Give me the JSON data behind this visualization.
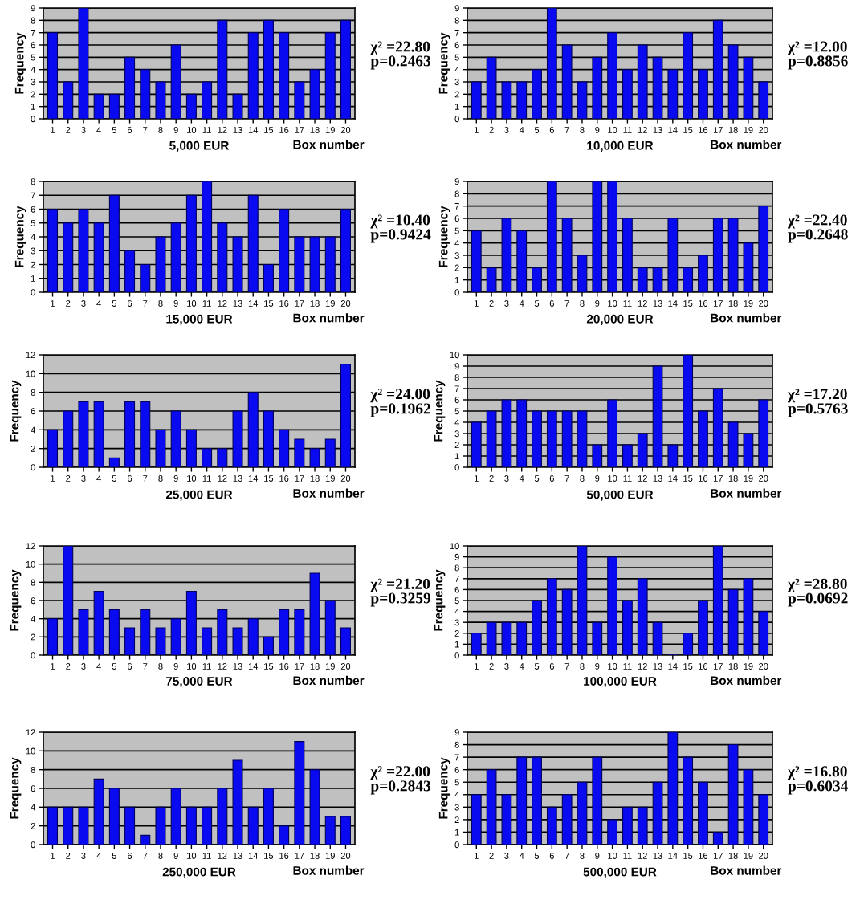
{
  "chart_data": [
    {
      "type": "bar",
      "title": "5,000 EUR",
      "xlabel": "Box number",
      "ylabel": "Frequency",
      "categories": [
        "1",
        "2",
        "3",
        "4",
        "5",
        "6",
        "7",
        "8",
        "9",
        "10",
        "11",
        "12",
        "13",
        "14",
        "15",
        "16",
        "17",
        "18",
        "19",
        "20"
      ],
      "series": [
        {
          "color": "#0a0af0",
          "values": [
            7,
            3,
            9,
            2,
            2,
            5,
            4,
            3,
            6,
            2,
            3,
            8,
            2,
            7,
            8,
            7,
            3,
            4,
            7,
            8
          ]
        }
      ],
      "ylim": [
        0,
        9
      ],
      "yticks": [
        0,
        1,
        2,
        3,
        4,
        5,
        6,
        7,
        8,
        9
      ],
      "grid": "y",
      "annotations": [
        "χ² =22.80",
        "p=0.2463"
      ]
    },
    {
      "type": "bar",
      "title": "10,000 EUR",
      "xlabel": "Box number",
      "ylabel": "Frequency",
      "categories": [
        "1",
        "2",
        "3",
        "4",
        "5",
        "6",
        "7",
        "8",
        "9",
        "10",
        "11",
        "12",
        "13",
        "14",
        "15",
        "16",
        "17",
        "18",
        "19",
        "20"
      ],
      "series": [
        {
          "color": "#0a0af0",
          "values": [
            3,
            5,
            3,
            3,
            4,
            9,
            6,
            3,
            5,
            7,
            4,
            6,
            5,
            4,
            7,
            4,
            8,
            6,
            5,
            3
          ]
        }
      ],
      "ylim": [
        0,
        9
      ],
      "yticks": [
        0,
        1,
        2,
        3,
        4,
        5,
        6,
        7,
        8,
        9
      ],
      "grid": "y",
      "annotations": [
        "χ² =12.00",
        "p=0.8856"
      ]
    },
    {
      "type": "bar",
      "title": "15,000 EUR",
      "xlabel": "Box number",
      "ylabel": "Frequency",
      "categories": [
        "1",
        "2",
        "3",
        "4",
        "5",
        "6",
        "7",
        "8",
        "9",
        "10",
        "11",
        "12",
        "13",
        "14",
        "15",
        "16",
        "17",
        "18",
        "19",
        "20"
      ],
      "series": [
        {
          "color": "#0a0af0",
          "values": [
            6,
            5,
            6,
            5,
            7,
            3,
            2,
            4,
            5,
            7,
            8,
            5,
            4,
            7,
            2,
            6,
            4,
            4,
            4,
            6
          ]
        }
      ],
      "ylim": [
        0,
        8
      ],
      "yticks": [
        0,
        1,
        2,
        3,
        4,
        5,
        6,
        7,
        8
      ],
      "grid": "y",
      "annotations": [
        "χ² =10.40",
        "p=0.9424"
      ]
    },
    {
      "type": "bar",
      "title": "20,000 EUR",
      "xlabel": "Box number",
      "ylabel": "Frequency",
      "categories": [
        "1",
        "2",
        "3",
        "4",
        "5",
        "6",
        "7",
        "8",
        "9",
        "10",
        "11",
        "12",
        "13",
        "14",
        "15",
        "16",
        "17",
        "18",
        "19",
        "20"
      ],
      "series": [
        {
          "color": "#0a0af0",
          "values": [
            5,
            2,
            6,
            5,
            2,
            9,
            6,
            3,
            9,
            9,
            6,
            2,
            2,
            6,
            2,
            3,
            6,
            6,
            4,
            7
          ]
        }
      ],
      "ylim": [
        0,
        9
      ],
      "yticks": [
        0,
        1,
        2,
        3,
        4,
        5,
        6,
        7,
        8,
        9
      ],
      "grid": "y",
      "annotations": [
        "χ² =22.40",
        "p=0.2648"
      ]
    },
    {
      "type": "bar",
      "title": "25,000 EUR",
      "xlabel": "Box number",
      "ylabel": "Frequency",
      "categories": [
        "1",
        "2",
        "3",
        "4",
        "5",
        "6",
        "7",
        "8",
        "9",
        "10",
        "11",
        "12",
        "13",
        "14",
        "15",
        "16",
        "17",
        "18",
        "19",
        "20"
      ],
      "series": [
        {
          "color": "#0a0af0",
          "values": [
            4,
            6,
            7,
            7,
            1,
            7,
            7,
            4,
            6,
            4,
            2,
            2,
            6,
            8,
            6,
            4,
            3,
            2,
            3,
            11
          ]
        }
      ],
      "ylim": [
        0,
        12
      ],
      "yticks": [
        0,
        2,
        4,
        6,
        8,
        10,
        12
      ],
      "grid": "y",
      "annotations": [
        "χ² =24.00",
        "p=0.1962"
      ]
    },
    {
      "type": "bar",
      "title": "50,000 EUR",
      "xlabel": "Box number",
      "ylabel": "Frequency",
      "categories": [
        "1",
        "2",
        "3",
        "4",
        "5",
        "6",
        "7",
        "8",
        "9",
        "10",
        "11",
        "12",
        "13",
        "14",
        "15",
        "16",
        "17",
        "18",
        "19",
        "20"
      ],
      "series": [
        {
          "color": "#0a0af0",
          "values": [
            4,
            5,
            6,
            6,
            5,
            5,
            5,
            5,
            2,
            6,
            2,
            3,
            9,
            2,
            10,
            5,
            7,
            4,
            3,
            6
          ]
        }
      ],
      "ylim": [
        0,
        10
      ],
      "yticks": [
        0,
        1,
        2,
        3,
        4,
        5,
        6,
        7,
        8,
        9,
        10
      ],
      "grid": "y",
      "annotations": [
        "χ² =17.20",
        "p=0.5763"
      ]
    },
    {
      "type": "bar",
      "title": "75,000 EUR",
      "xlabel": "Box number",
      "ylabel": "Frequency",
      "categories": [
        "1",
        "2",
        "3",
        "4",
        "5",
        "6",
        "7",
        "8",
        "9",
        "10",
        "11",
        "12",
        "13",
        "14",
        "15",
        "16",
        "17",
        "18",
        "19",
        "20"
      ],
      "series": [
        {
          "color": "#0a0af0",
          "values": [
            4,
            12,
            5,
            7,
            5,
            3,
            5,
            3,
            4,
            7,
            3,
            5,
            3,
            4,
            2,
            5,
            5,
            9,
            6,
            3
          ]
        }
      ],
      "ylim": [
        0,
        12
      ],
      "yticks": [
        0,
        2,
        4,
        6,
        8,
        10,
        12
      ],
      "grid": "y",
      "annotations": [
        "χ² =21.20",
        "p=0.3259"
      ]
    },
    {
      "type": "bar",
      "title": "100,000 EUR",
      "xlabel": "Box number",
      "ylabel": "Frequency",
      "categories": [
        "1",
        "2",
        "3",
        "4",
        "5",
        "6",
        "7",
        "8",
        "9",
        "10",
        "11",
        "12",
        "13",
        "14",
        "15",
        "16",
        "17",
        "18",
        "19",
        "20"
      ],
      "series": [
        {
          "color": "#0a0af0",
          "values": [
            2,
            3,
            3,
            3,
            5,
            7,
            6,
            10,
            3,
            9,
            5,
            7,
            3,
            0,
            2,
            5,
            10,
            6,
            7,
            4
          ]
        }
      ],
      "ylim": [
        0,
        10
      ],
      "yticks": [
        0,
        1,
        2,
        3,
        4,
        5,
        6,
        7,
        8,
        9,
        10
      ],
      "grid": "y",
      "annotations": [
        "χ² =28.80",
        "p=0.0692"
      ]
    },
    {
      "type": "bar",
      "title": "250,000 EUR",
      "xlabel": "Box number",
      "ylabel": "Frequency",
      "categories": [
        "1",
        "2",
        "3",
        "4",
        "5",
        "6",
        "7",
        "8",
        "9",
        "10",
        "11",
        "12",
        "13",
        "14",
        "15",
        "16",
        "17",
        "18",
        "19",
        "20"
      ],
      "series": [
        {
          "color": "#0a0af0",
          "values": [
            4,
            4,
            4,
            7,
            6,
            4,
            1,
            4,
            6,
            4,
            4,
            6,
            9,
            4,
            6,
            2,
            11,
            8,
            3,
            3
          ]
        }
      ],
      "ylim": [
        0,
        12
      ],
      "yticks": [
        0,
        2,
        4,
        6,
        8,
        10,
        12
      ],
      "grid": "y",
      "annotations": [
        "χ² =22.00",
        "p=0.2843"
      ]
    },
    {
      "type": "bar",
      "title": "500,000 EUR",
      "xlabel": "Box number",
      "ylabel": "Frequency",
      "categories": [
        "1",
        "2",
        "3",
        "4",
        "5",
        "6",
        "7",
        "8",
        "9",
        "10",
        "11",
        "12",
        "13",
        "14",
        "15",
        "16",
        "17",
        "18",
        "19",
        "20"
      ],
      "series": [
        {
          "color": "#0a0af0",
          "values": [
            4,
            6,
            4,
            7,
            7,
            3,
            4,
            5,
            7,
            2,
            3,
            3,
            5,
            9,
            7,
            5,
            1,
            8,
            6,
            4
          ]
        }
      ],
      "ylim": [
        0,
        9
      ],
      "yticks": [
        0,
        1,
        2,
        3,
        4,
        5,
        6,
        7,
        8,
        9
      ],
      "grid": "y",
      "annotations": [
        "χ² =16.80",
        "p=0.6034"
      ]
    }
  ]
}
